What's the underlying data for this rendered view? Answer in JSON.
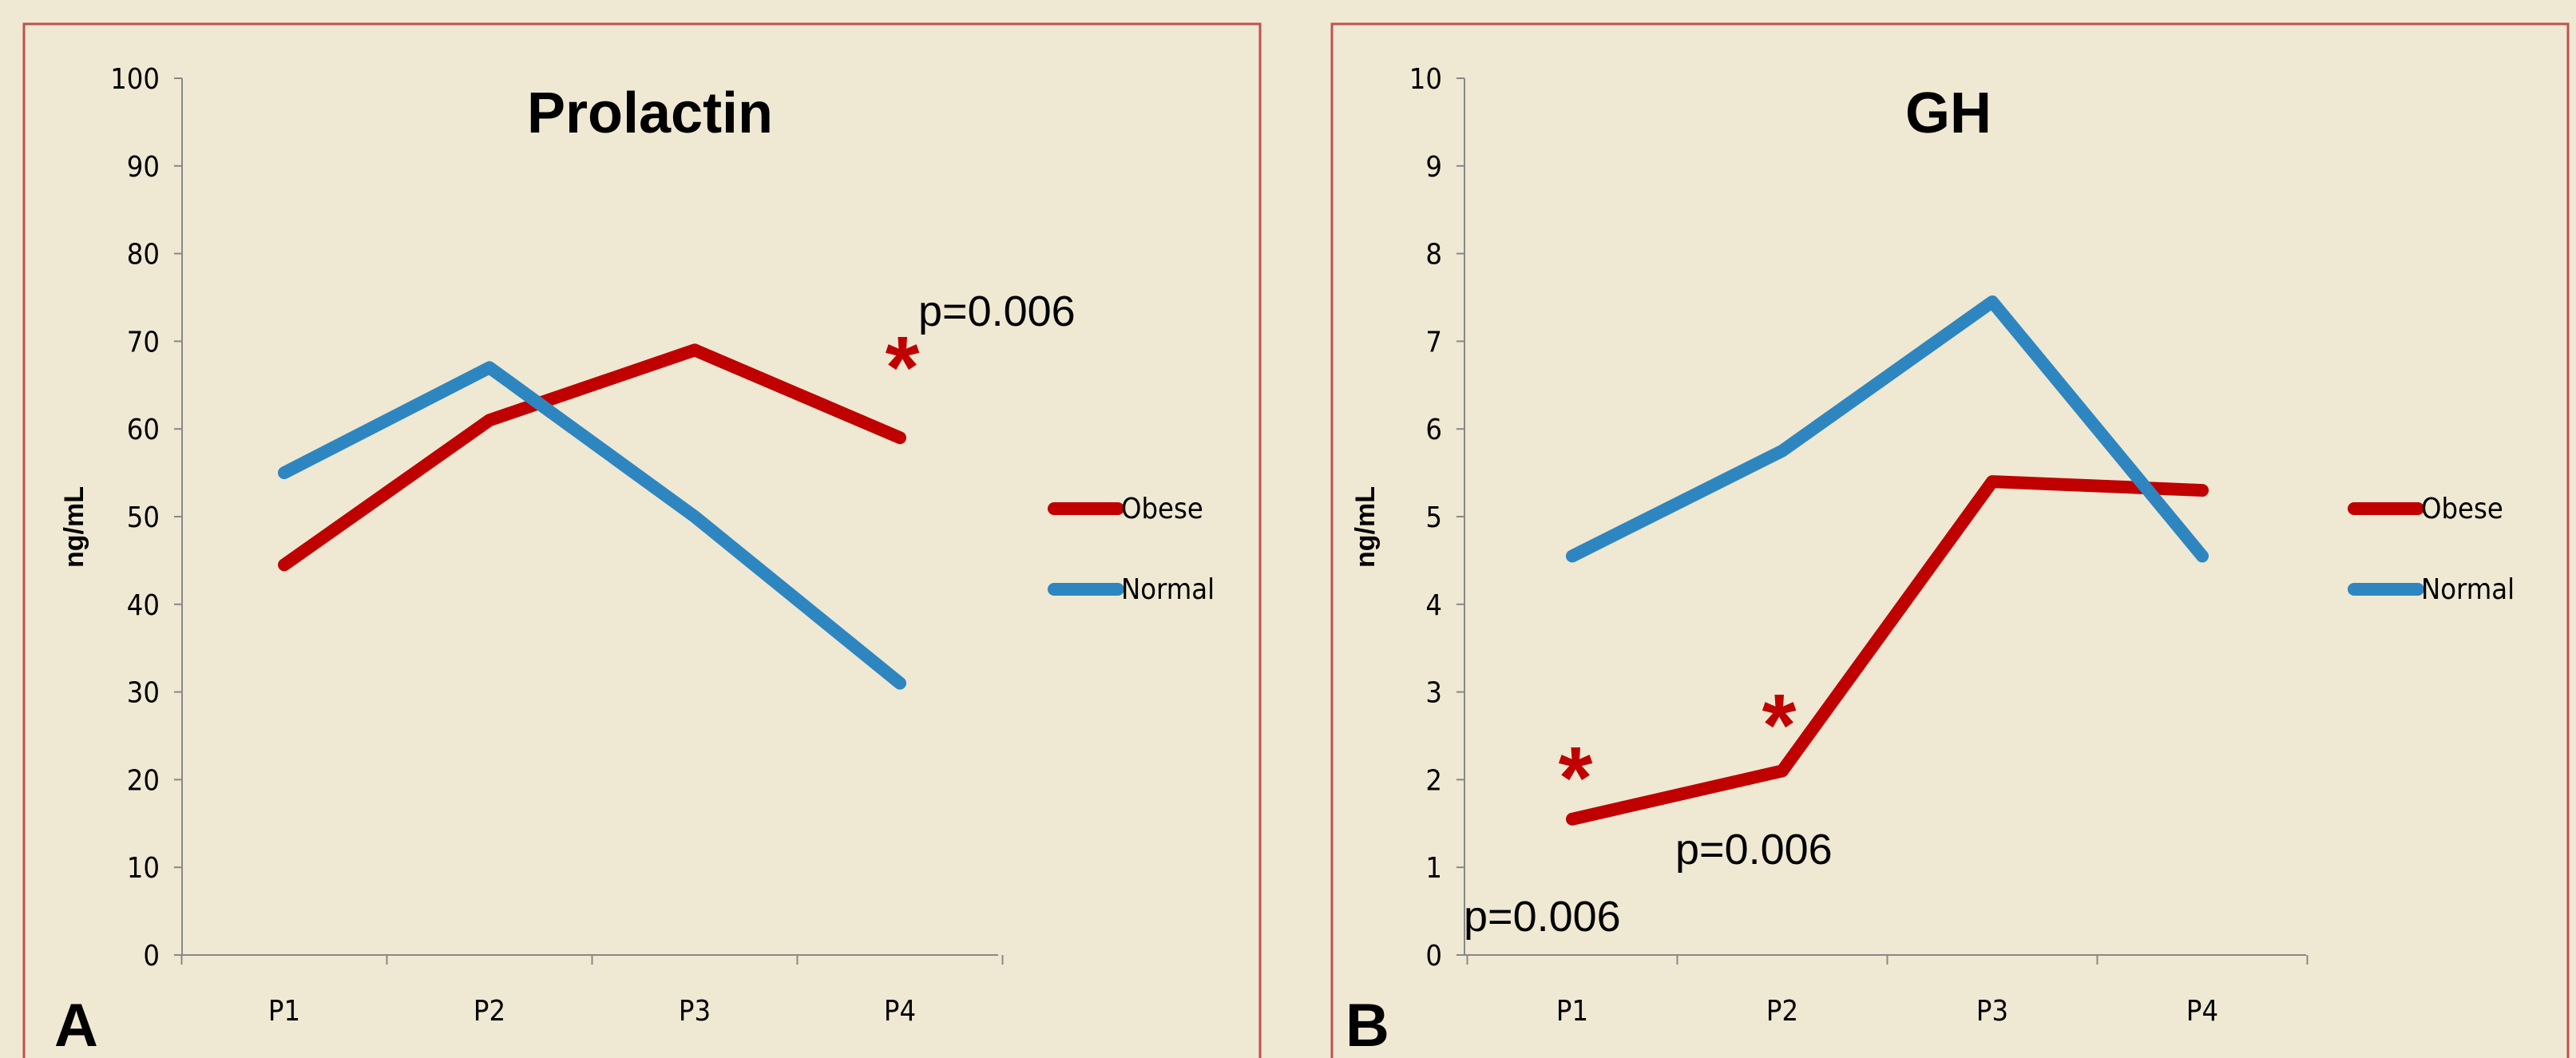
{
  "background_color": "#efe8d3",
  "frame_color": "#c0504d",
  "chart_data": [
    {
      "panel_label": "A",
      "type": "line",
      "title": "Prolactin",
      "xlabel": "",
      "ylabel": "ng/mL",
      "ylim": [
        0,
        100
      ],
      "yticks": [
        "0",
        "10",
        "20",
        "30",
        "40",
        "50",
        "60",
        "70",
        "80",
        "90",
        "100"
      ],
      "categories": [
        "P1",
        "P2",
        "P3",
        "P4"
      ],
      "grid": false,
      "legend_position": "right",
      "series": [
        {
          "name": "Obese",
          "color": "#c00000",
          "values": [
            44.5,
            61,
            69,
            59
          ]
        },
        {
          "name": "Normal",
          "color": "#2e86c1",
          "values": [
            55,
            67,
            50,
            31
          ]
        }
      ],
      "annotations": [
        {
          "text": "p=0.006",
          "marker": "*",
          "series": "Obese",
          "category": "P4",
          "placement": "above"
        }
      ]
    },
    {
      "panel_label": "B",
      "type": "line",
      "title": "GH",
      "xlabel": "",
      "ylabel": "ng/mL",
      "ylim": [
        0,
        10
      ],
      "yticks": [
        "0",
        "1",
        "2",
        "3",
        "4",
        "5",
        "6",
        "7",
        "8",
        "9",
        "10"
      ],
      "categories": [
        "P1",
        "P2",
        "P3",
        "P4"
      ],
      "grid": false,
      "legend_position": "right",
      "series": [
        {
          "name": "Obese",
          "color": "#c00000",
          "values": [
            1.55,
            2.1,
            5.4,
            5.3
          ]
        },
        {
          "name": "Normal",
          "color": "#2e86c1",
          "values": [
            4.55,
            5.75,
            7.45,
            4.55
          ]
        }
      ],
      "annotations": [
        {
          "text": "p=0.006",
          "marker": "*",
          "series": "Obese",
          "category": "P1",
          "placement": "below"
        },
        {
          "text": "p=0.006",
          "marker": "*",
          "series": "Obese",
          "category": "P2",
          "placement": "below"
        }
      ]
    }
  ]
}
